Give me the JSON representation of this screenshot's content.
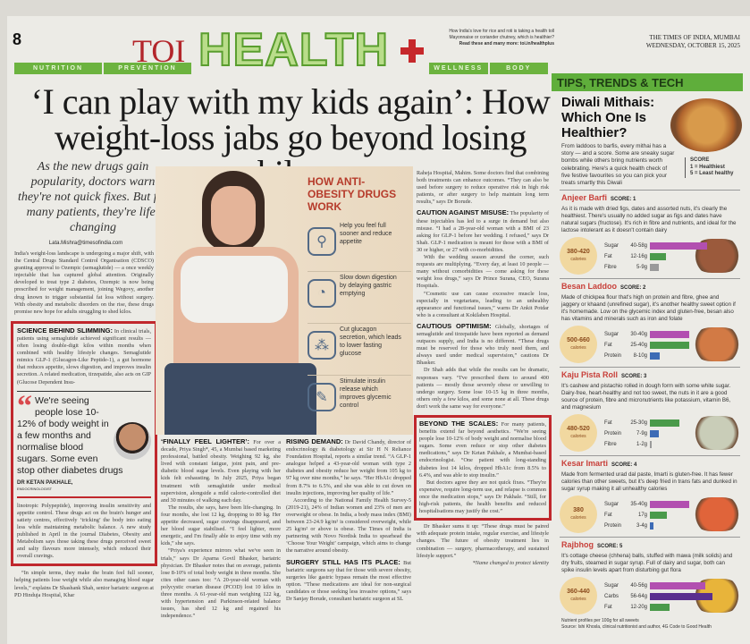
{
  "masthead": {
    "page_number": "8",
    "brand": "TOI",
    "section": "HEALTH",
    "nav": [
      "NUTRITION",
      "PREVENTION",
      "WELLNESS",
      "BODY"
    ],
    "promo": [
      "How India's love for rice and roti is taking a health toll",
      "Mayonnaise or coriander chutney, which is healthier?",
      "Read these and many more: toi.in/healthplus"
    ],
    "paper": "THE TIMES OF INDIA, MUMBAI",
    "date": "WEDNESDAY, OCTOBER 15, 2025"
  },
  "article": {
    "headline": "‘I can play with my kids again’: How weight-loss jabs go beyond losing kilos",
    "deck": "As the new drugs gain popularity, doctors warn they're not quick fixes. But for many patients, they're life-changing",
    "byline": "Lata.Mishra@timesofindia.com",
    "intro": "India's weight-loss landscape is undergoing a major shift, with the Central Drugs Standard Control Organisation (CDSCO) granting approval to Ozempic (semaglutide) — a once weekly injectable that has captured global attention. Originally developed to treat type 2 diabetes, Ozempic is now being prescribed for weight management, joining Wegovy, another drug known to trigger substantial fat loss without surgery. With obesity and metabolic disorders on the rise, these drugs promise new hope for adults struggling to shed kilos.",
    "science": {
      "title": "SCIENCE BEHIND SLIMMING:",
      "text": "In clinical trials, patients using semaglutide achieved significant results — often losing double-digit kilos within months when combined with healthy lifestyle changes. Semaglutide mimics GLP-1 (Glucagon-Like Peptide-1), a gut hormone that reduces appetite, slows digestion, and improves insulin secretion. A related medication, tirzepatide, also acts on GIP (Glucose Dependent Insu-"
    },
    "science_cont": "linotropic Polypeptide), improving insulin sensitivity and appetite control. These drugs act on the brain's hunger and satiety centres, effectively ‘tricking’ the body into eating less while maintaining metabolic balance. A new study published in April in the journal Diabetes, Obesity and Metabolism says those taking these drugs perceived sweet and salty flavours more intensely, which reduced their overall cravings.",
    "science_tail": "“In simple terms, they make the brain feel full sooner, helping patients lose weight while also managing blood sugar levels,” explains Dr Shashank Shah, senior bariatric surgeon at PD Hinduja Hospital, Khar",
    "quote": {
      "text": "We're seeing people lose 10-12% of body weight in a few months and normalise blood sugars. Some even stop other diabetes drugs",
      "name": "DR KETAN PAKHALE,",
      "role": "ENDOCRINOLOGIST"
    },
    "lighter": {
      "title": "‘FINALLY FEEL LIGHTER’:",
      "text": "For over a decade, Priya Singh*, 45, a Mumbai based marketing professional, battled obesity. Weighing 92 kg, she lived with constant fatigue, joint pain, and pre-diabetic blood sugar levels. Even playing with her kids felt exhausting. In July 2025, Priya began treatment with semaglutide under medical supervision, alongside a mild calorie-controlled diet and 30 minutes of walking each day.",
      "p2": "The results, she says, have been life-changing. In four months, she lost 12 kg, dropping to 80 kg. Her appetite decreased, sugar cravings disappeared, and her blood sugar stabilised. “I feel lighter, more energetic, and I'm finally able to enjoy time with my kids,” she says.",
      "p3": "“Priya's experience mirrors what we've seen in trials,” says Dr Aparna Govil Bhasker, bariatric physician. Dr Bhasker notes that on average, patients lose 8-10% of total body weight in three months. She cites other cases too: “A 20-year-old woman with polycystic ovarian disease (PCOD) lost 10 kilos in three months. A 61-year-old man weighing 122 kg, with hypertension and Parkinson-related balance issues, has shed 12 kg and regained his independence.”"
    },
    "rising": {
      "title": "RISING DEMAND:",
      "text": "Dr David Chandy, director of endocrinology & diabetology at Sir H N Reliance Foundation Hospital, reports a similar trend. “A GLP-1 analogue helped a 43-year-old woman with type 2 diabetes and obesity reduce her weight from 105 kg to 97 kg over nine months,” he says. “Her HbA1c dropped from 8.7% to 6.5%, and she was able to cut down on insulin injections, improving her quality of life.”",
      "p2": "According to the National Family Health Survey-5 (2019-21), 24% of Indian women and 23% of men are overweight or obese. In India, a body mass index (BMI) between 23-24.9 kg/m² is considered overweight, while 25 kg/m² or above is obese. The Times of India is partnering with Novo Nordisk India to spearhead the ‘Choose Your Weight’ campaign, which aims to change the narrative around obesity."
    },
    "surgery": {
      "title": "SURGERY STILL HAS ITS PLACE:",
      "text": "But bariatric surgeons say that for those with severe obesity, surgeries like gastric bypass remain the most effective option. “These medications are ideal for non-surgical candidates or those seeking less invasive options,” says Dr Sanjay Borude, consultant bariatric surgeon at SL"
    },
    "col3_top": "Raheja Hospital, Mahim. Some doctors find that combining both treatments can enhance outcomes. “They can also be used before surgery to reduce operative risk in high risk patients, or after surgery to help maintain long term results,” says Dr Borude.",
    "caution": {
      "title": "CAUTION AGAINST MISUSE:",
      "text": "The popularity of these injectables has led to a surge in demand but also misuse. “I had a 28-year-old woman with a BMI of 23 asking for GLP-1 before her wedding. I refused,” says Dr Shah. GLP-1 medication is meant for those with a BMI of 30 or higher, or 27 with co-morbidities.",
      "p2": "With the wedding season around the corner, such requests are multiplying. “Every day, at least 10 people — many without comorbidities — come asking for these weight loss drugs,” says Dr Prince Surana, CEO, Surana Hospitals.",
      "p3": "“Cosmetic use can cause excessive muscle loss, especially in vegetarians, leading to an unhealthy appearance and functional issues,” warns Dr Ankit Potdar who is a consultant at Kokilaben Hospital."
    },
    "optimism": {
      "title": "CAUTIOUS OPTIMISM:",
      "text": "Globally, shortages of semaglutide and tirzepatide have been reported as demand outpaces supply, and India is no different. “These drugs must be reserved for those who truly need them, and always used under medical supervision,” cautions Dr Bhasker.",
      "p2": "Dr Shah adds that while the results can be dramatic, responses vary. “I've prescribed them to around 400 patients — mostly those severely obese or unwilling to undergo surgery. Some lose 10-15 kg in three months, others only a few kilos, and some none at all. These drugs don't work the same way for everyone.”"
    },
    "scales": {
      "title": "BEYOND THE SCALES:",
      "text": "For many patients, benefits extend far beyond aesthetics. “We're seeing people lose 10-12% of body weight and normalise blood sugars. Some even reduce or stop other diabetes medications,” says Dr Ketan Pakhale, a Mumbai-based endocrinologist. “One patient with long-standing diabetes lost 14 kilos, dropped HbA1c from 8.5% to 6.4%, and was able to stop insulin.”",
      "p2": "But doctors agree they are not quick fixes. “They're expensive, require long-term use, and relapse is common once the medication stops,” says Dr Pakhale. “Still, for high-risk patients, the health benefits and reduced hospitalisations may justify the cost.”"
    },
    "closing": "Dr Bhasker sums it up: “These drugs must be paired with adequate protein intake, regular exercise, and lifestyle changes. The future of obesity treatment lies in combination — surgery, pharmacotherapy, and sustained lifestyle support.”",
    "footnote": "*Name changed to protect identity"
  },
  "infographic": {
    "title": "HOW ANTI-OBESITY DRUGS WORK",
    "items": [
      {
        "icon": "stomach-fork-icon",
        "text": "Help you feel full sooner and reduce appetite"
      },
      {
        "icon": "stomach-icon",
        "text": "Slow down digestion by delaying gastric emptying"
      },
      {
        "icon": "pancreas-icon",
        "text": "Cut glucagon secretion, which leads to lower fasting glucose"
      },
      {
        "icon": "injection-icon",
        "text": "Stimulate insulin release which improves glycemic control"
      }
    ]
  },
  "sidebar": {
    "header": "TIPS, TRENDS & TECH",
    "title": "Diwali Mithais: Which One Is Healthier?",
    "intro": "From laddoos to barfis, every mithai has a story — and a score. Some are sneaky sugar bombs while others bring nutrients worth celebrating. Here's a quick health check of five festive favourites so you can pick your treats smartly this Diwali",
    "score_key": [
      "SCORE",
      "1 = Healthiest",
      "5 = Least healthy"
    ],
    "sweets": [
      {
        "name": "Anjeer Barfi",
        "score": "SCORE: 1",
        "desc": "As it is made with dried figs, dates and assorted nuts, it's clearly the healthiest. There's usually no added sugar as figs and dates have natural sugars (fructose). It's rich in fibre and nutrients, and ideal for the lactose intolerant as it doesn't contain dairy",
        "calories": "380-420",
        "cal_unit": "calories",
        "nutrients": [
          {
            "label": "Sugar",
            "value": "40-58g",
            "grams": 58,
            "color": "#b24fb0"
          },
          {
            "label": "Fat",
            "value": "12-16g",
            "grams": 16,
            "color": "#4a9a4a"
          },
          {
            "label": "Fibre",
            "value": "5-9g",
            "grams": 9,
            "color": "#9a9a9a"
          }
        ],
        "food_color": "#9b5a3c"
      },
      {
        "name": "Besan Laddoo",
        "score": "SCORE: 2",
        "desc": "Made of chickpea flour that's high on protein and fibre, ghee and jaggery or khaand (unrefined sugar), it's another healthy sweet option if it's homemade. Low on the glycemic index and gluten-free, besan also has vitamins and minerals such as iron and folate",
        "calories": "500-660",
        "cal_unit": "calories",
        "nutrients": [
          {
            "label": "Sugar",
            "value": "30-40g",
            "grams": 40,
            "color": "#b24fb0"
          },
          {
            "label": "Fat",
            "value": "25-40g",
            "grams": 40,
            "color": "#4a9a4a"
          },
          {
            "label": "Protein",
            "value": "8-10g",
            "grams": 10,
            "color": "#3d6bb5"
          }
        ],
        "food_color": "#d27a45"
      },
      {
        "name": "Kaju Pista Roll",
        "score": "SCORE: 3",
        "desc": "It's cashew and pistachio rolled in dough form with some white sugar. Dairy-free, heart-healthy and not too sweet, the nuts in it are a good source of protein, fibre and micronutrients like potassium, vitamin B6, and magnesium",
        "calories": "480-520",
        "cal_unit": "calories",
        "nutrients": [
          {
            "label": "Fat",
            "value": "25-30g",
            "grams": 30,
            "color": "#4a9a4a"
          },
          {
            "label": "Protein",
            "value": "7-9g",
            "grams": 9,
            "color": "#3d6bb5"
          },
          {
            "label": "Fibre",
            "value": "1-2g",
            "grams": 2,
            "color": "#9a9a9a"
          }
        ],
        "food_color": "#c9cdb8"
      },
      {
        "name": "Kesar Imarti",
        "score": "SCORE: 4",
        "desc": "Made from fermented urad dal paste, Imarti is gluten-free. It has fewer calories than other sweets, but it's deep fried in trans fats and dunked in sugar syrup making it all unhealthy calories",
        "calories": "380",
        "cal_unit": "calories",
        "nutrients": [
          {
            "label": "Sugar",
            "value": "35-40g",
            "grams": 40,
            "color": "#b24fb0"
          },
          {
            "label": "Fat",
            "value": "17g",
            "grams": 17,
            "color": "#4a9a4a"
          },
          {
            "label": "Protein",
            "value": "3-4g",
            "grams": 4,
            "color": "#3d6bb5"
          }
        ],
        "food_color": "#e0643a"
      },
      {
        "name": "Rajbhog",
        "score": "SCORE: 5",
        "desc": "It's cottage cheese (chhena) balls, stuffed with mawa (milk solids) and dry fruits, steamed in sugar syrup. Full of dairy and sugar, both can spike insulin levels apart from disturbing gut flora",
        "calories": "360-440",
        "cal_unit": "calories",
        "nutrients": [
          {
            "label": "Sugar",
            "value": "40-56g",
            "grams": 56,
            "color": "#b24fb0"
          },
          {
            "label": "Carbs",
            "value": "56-64g",
            "grams": 64,
            "color": "#5a2f8f"
          },
          {
            "label": "Fat",
            "value": "12-20g",
            "grams": 20,
            "color": "#4a9a4a"
          }
        ],
        "food_color": "#e8b43a"
      }
    ],
    "footnote": "Nutrient profiles per 100g for all sweets",
    "source": "Source: Ishi Khosla, clinical nutritionist and author, 4G Code to Good Health"
  }
}
